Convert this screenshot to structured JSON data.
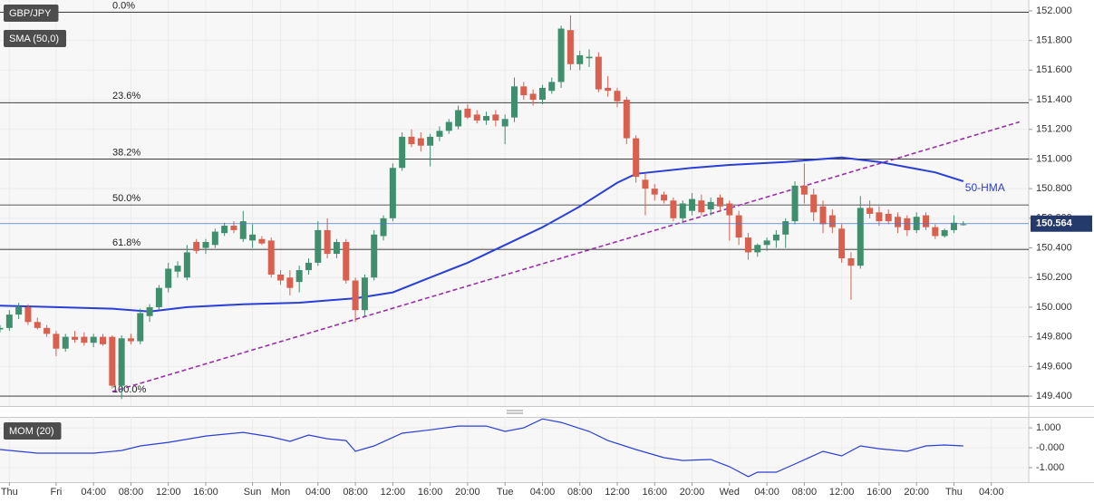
{
  "chart_data": [
    {
      "type": "candlestick",
      "title": "GBP/JPY",
      "x": [
        -6,
        -5,
        -4,
        -3,
        -2,
        -1,
        0,
        1,
        2,
        3,
        4,
        5,
        6,
        7,
        8,
        9,
        10,
        11,
        12,
        13,
        14,
        15,
        16,
        17,
        18,
        19,
        20,
        21,
        22,
        23,
        24,
        25,
        26,
        27,
        28,
        29,
        30,
        31,
        32,
        33,
        34,
        35,
        36,
        37,
        38,
        39,
        40,
        41,
        42,
        43,
        44,
        45,
        46,
        47,
        48,
        49,
        50,
        51,
        52,
        53,
        54,
        55,
        56,
        57,
        58,
        59,
        60,
        61,
        62,
        63,
        64,
        65,
        66,
        67,
        68,
        69,
        70,
        71,
        72,
        73,
        74,
        75,
        76,
        77,
        78,
        79,
        80,
        81,
        82,
        83,
        84,
        85,
        86,
        87,
        88,
        89,
        90,
        91,
        92,
        93,
        94,
        95,
        96,
        97
      ],
      "open": [
        149.85,
        149.86,
        149.95,
        150.0,
        149.9,
        149.86,
        149.82,
        149.72,
        149.8,
        149.8,
        149.76,
        149.8,
        149.8,
        149.47,
        149.79,
        149.77,
        149.94,
        150.0,
        150.13,
        150.24,
        150.2,
        150.44,
        150.4,
        150.42,
        150.5,
        150.55,
        150.46,
        150.45,
        150.46,
        150.45,
        150.22,
        150.2,
        150.17,
        150.25,
        150.3,
        150.52,
        150.36,
        150.44,
        150.18,
        149.98,
        150.2,
        150.48,
        150.6,
        150.94,
        151.15,
        151.14,
        151.09,
        151.15,
        151.19,
        151.22,
        151.34,
        151.3,
        151.26,
        151.3,
        151.22,
        151.28,
        151.49,
        151.44,
        151.4,
        151.46,
        151.52,
        151.87,
        151.64,
        151.68,
        151.69,
        151.48,
        151.46,
        151.4,
        151.14,
        150.86,
        150.8,
        150.76,
        150.72,
        150.6,
        150.65,
        150.72,
        150.66,
        150.74,
        150.7,
        150.62,
        150.47,
        150.37,
        150.42,
        150.45,
        150.49,
        150.58,
        150.82,
        150.76,
        150.68,
        150.62,
        150.53,
        150.33,
        150.28,
        150.67,
        150.64,
        150.63,
        150.61,
        150.6,
        150.52,
        150.62,
        150.54,
        150.48,
        150.52,
        150.56
      ],
      "high": [
        149.88,
        149.98,
        150.03,
        150.02,
        149.93,
        149.88,
        149.84,
        149.82,
        149.84,
        149.83,
        149.82,
        149.82,
        149.81,
        149.81,
        149.82,
        149.99,
        150.02,
        150.15,
        150.3,
        150.31,
        150.42,
        150.46,
        150.46,
        150.53,
        150.57,
        150.58,
        150.65,
        150.56,
        150.48,
        150.47,
        150.25,
        150.25,
        150.28,
        150.33,
        150.58,
        150.6,
        150.46,
        150.46,
        150.2,
        150.22,
        150.52,
        150.62,
        150.97,
        151.18,
        151.2,
        151.18,
        151.17,
        151.22,
        151.27,
        151.36,
        151.37,
        151.33,
        151.32,
        151.33,
        151.3,
        151.55,
        151.52,
        151.47,
        151.5,
        151.55,
        151.9,
        151.97,
        151.73,
        151.74,
        151.72,
        151.56,
        151.48,
        151.42,
        151.16,
        150.9,
        150.83,
        150.78,
        150.74,
        150.72,
        150.77,
        150.76,
        150.74,
        150.76,
        150.72,
        150.65,
        150.5,
        150.43,
        150.47,
        150.52,
        150.6,
        150.85,
        150.97,
        150.8,
        150.72,
        150.66,
        150.56,
        150.37,
        150.75,
        150.72,
        150.68,
        150.66,
        150.64,
        150.62,
        150.64,
        150.64,
        150.56,
        150.53,
        150.62,
        150.58
      ],
      "low": [
        149.83,
        149.84,
        149.92,
        149.88,
        149.85,
        149.8,
        149.67,
        149.7,
        149.76,
        149.74,
        149.73,
        149.74,
        149.45,
        149.38,
        149.75,
        149.75,
        149.9,
        149.98,
        150.1,
        150.2,
        150.18,
        150.36,
        150.36,
        150.4,
        150.48,
        150.5,
        150.44,
        150.4,
        150.42,
        150.2,
        150.15,
        150.08,
        150.1,
        150.22,
        150.28,
        150.33,
        150.33,
        150.16,
        149.9,
        149.94,
        150.18,
        150.45,
        150.58,
        150.92,
        151.08,
        151.05,
        150.95,
        151.12,
        151.17,
        151.2,
        151.27,
        151.24,
        151.23,
        151.22,
        151.1,
        151.25,
        151.4,
        151.36,
        151.37,
        151.44,
        151.48,
        151.6,
        151.6,
        151.62,
        151.45,
        151.42,
        151.35,
        151.1,
        150.84,
        150.62,
        150.72,
        150.7,
        150.58,
        150.58,
        150.62,
        150.62,
        150.62,
        150.65,
        150.45,
        150.42,
        150.32,
        150.34,
        150.38,
        150.4,
        150.4,
        150.56,
        150.7,
        150.58,
        150.5,
        150.5,
        150.3,
        150.05,
        150.26,
        150.6,
        150.55,
        150.56,
        150.5,
        150.48,
        150.5,
        150.52,
        150.46,
        150.47,
        150.5,
        150.55
      ],
      "close": [
        149.86,
        149.95,
        150.0,
        149.9,
        149.86,
        149.82,
        149.72,
        149.8,
        149.78,
        149.76,
        149.8,
        149.75,
        149.47,
        149.79,
        149.77,
        149.96,
        150.0,
        150.13,
        150.26,
        150.28,
        150.37,
        150.38,
        150.44,
        150.51,
        150.55,
        150.52,
        150.58,
        150.49,
        150.43,
        150.22,
        150.18,
        150.13,
        150.25,
        150.3,
        150.52,
        150.36,
        150.44,
        150.18,
        149.98,
        150.2,
        150.49,
        150.6,
        150.94,
        151.15,
        151.1,
        151.09,
        151.15,
        151.19,
        151.25,
        151.33,
        151.28,
        151.26,
        151.29,
        151.26,
        151.27,
        151.49,
        151.43,
        151.4,
        151.48,
        151.52,
        151.88,
        151.64,
        151.7,
        151.69,
        151.47,
        151.46,
        151.39,
        151.14,
        150.88,
        150.8,
        150.76,
        150.72,
        150.6,
        150.7,
        150.73,
        150.64,
        150.71,
        150.68,
        150.62,
        150.47,
        150.37,
        150.42,
        150.45,
        150.49,
        150.58,
        150.82,
        150.76,
        150.64,
        150.56,
        150.54,
        150.33,
        150.28,
        150.67,
        150.63,
        150.58,
        150.58,
        150.54,
        150.52,
        150.61,
        150.54,
        150.48,
        150.52,
        150.57,
        150.56
      ],
      "up_color": "#3f8f6f",
      "down_color": "#d9604f",
      "series": [
        {
          "name": "SMA (50,0)",
          "annotation": "50-HMA",
          "color": "#2a3fd6",
          "x": [
            -6,
            0,
            6,
            10,
            14,
            20,
            26,
            32,
            36,
            40,
            44,
            48,
            52,
            56,
            60,
            62,
            68,
            72,
            78,
            84,
            88,
            94,
            97
          ],
          "values": [
            150.01,
            150.0,
            149.99,
            149.97,
            150.0,
            150.02,
            150.03,
            150.06,
            150.1,
            150.2,
            150.3,
            150.42,
            150.54,
            150.68,
            150.84,
            150.9,
            150.94,
            150.96,
            150.98,
            151.01,
            150.98,
            150.91,
            150.85
          ]
        }
      ],
      "trendline": {
        "color": "#9a2fa8",
        "x": [
          6,
          103
        ],
        "values": [
          149.43,
          151.25
        ]
      },
      "fib": {
        "labels": [
          "0.0%",
          "23.6%",
          "38.2%",
          "50.0%",
          "61.8%",
          "100.0%"
        ],
        "values": [
          151.99,
          151.38,
          151.0,
          150.69,
          150.39,
          149.4
        ]
      },
      "last_price": {
        "value": 150.564,
        "color": "#233a6b"
      },
      "xlim": [
        -6,
        104
      ],
      "ylim": [
        149.333,
        152.073
      ],
      "yticks": [
        {
          "value": 149.4,
          "label": "149.400"
        },
        {
          "value": 149.6,
          "label": "149.600"
        },
        {
          "value": 149.8,
          "label": "149.800"
        },
        {
          "value": 150.0,
          "label": "150.000"
        },
        {
          "value": 150.2,
          "label": "150.200"
        },
        {
          "value": 150.4,
          "label": "150.400"
        },
        {
          "value": 150.6,
          "label": "150.600"
        },
        {
          "value": 150.8,
          "label": "150.800"
        },
        {
          "value": 151.0,
          "label": "151.000"
        },
        {
          "value": 151.2,
          "label": "151.200"
        },
        {
          "value": 151.4,
          "label": "151.400"
        },
        {
          "value": 151.6,
          "label": "151.600"
        },
        {
          "value": 151.8,
          "label": "151.800"
        },
        {
          "value": 152.0,
          "label": "152.000"
        }
      ]
    },
    {
      "type": "line",
      "title": "MOM (20)",
      "series": [
        {
          "color": "#2a3fd6",
          "x": [
            -6,
            -2,
            4,
            7,
            9,
            12,
            16,
            20,
            23,
            25,
            27,
            29,
            31,
            32,
            34,
            37,
            40,
            43,
            46,
            48,
            50,
            52,
            54,
            57,
            59,
            62,
            65,
            67,
            70,
            72,
            74,
            75,
            77,
            79,
            82,
            84,
            86,
            88,
            91,
            93,
            95,
            97
          ],
          "values": [
            -0.09,
            -0.27,
            -0.27,
            -0.14,
            0.09,
            0.27,
            0.59,
            0.77,
            0.55,
            0.32,
            0.64,
            0.45,
            0.36,
            -0.18,
            0.09,
            0.73,
            0.9,
            1.09,
            1.09,
            0.82,
            1.0,
            1.45,
            1.27,
            0.82,
            0.36,
            -0.09,
            -0.5,
            -0.64,
            -0.59,
            -0.95,
            -1.45,
            -1.23,
            -1.23,
            -0.82,
            -0.18,
            -0.41,
            0.09,
            -0.05,
            -0.18,
            0.09,
            0.14,
            0.09
          ]
        }
      ],
      "xlim": [
        -6,
        104
      ],
      "ylim": [
        -1.73,
        1.55
      ],
      "yticks": [
        {
          "value": 1,
          "label": "1.000"
        },
        {
          "value": 0,
          "label": "-0.000"
        },
        {
          "value": -1,
          "label": "-1.000"
        }
      ],
      "xticks": [
        {
          "value": -5,
          "label": "Thu"
        },
        {
          "value": 0,
          "label": "Fri"
        },
        {
          "value": 4,
          "label": "04:00"
        },
        {
          "value": 8,
          "label": "08:00"
        },
        {
          "value": 12,
          "label": "12:00"
        },
        {
          "value": 16,
          "label": "16:00"
        },
        {
          "value": 21,
          "label": "Sun"
        },
        {
          "value": 24,
          "label": "Mon"
        },
        {
          "value": 28,
          "label": "04:00"
        },
        {
          "value": 32,
          "label": "08:00"
        },
        {
          "value": 36,
          "label": "12:00"
        },
        {
          "value": 40,
          "label": "16:00"
        },
        {
          "value": 44,
          "label": "20:00"
        },
        {
          "value": 48,
          "label": "Tue"
        },
        {
          "value": 52,
          "label": "04:00"
        },
        {
          "value": 56,
          "label": "08:00"
        },
        {
          "value": 60,
          "label": "12:00"
        },
        {
          "value": 64,
          "label": "16:00"
        },
        {
          "value": 68,
          "label": "20:00"
        },
        {
          "value": 72,
          "label": "Wed"
        },
        {
          "value": 76,
          "label": "04:00"
        },
        {
          "value": 80,
          "label": "08:00"
        },
        {
          "value": 84,
          "label": "12:00"
        },
        {
          "value": 88,
          "label": "16:00"
        },
        {
          "value": 92,
          "label": "20:00"
        },
        {
          "value": 96,
          "label": "Thu"
        },
        {
          "value": 100,
          "label": "04:00"
        }
      ]
    }
  ]
}
